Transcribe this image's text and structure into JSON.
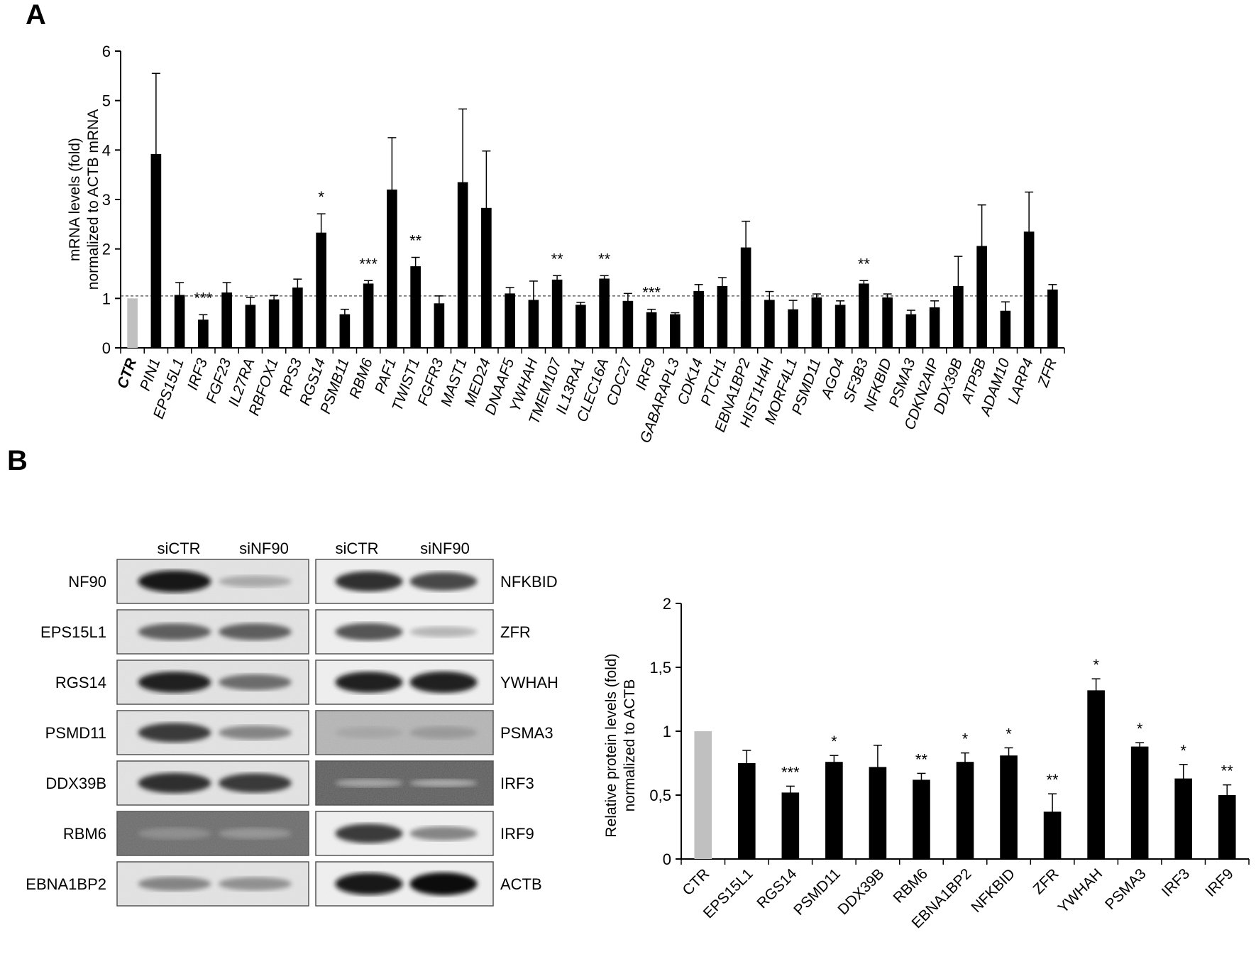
{
  "panels": {
    "a": "A",
    "b": "B"
  },
  "chart_data": [
    {
      "type": "bar",
      "panel": "A",
      "ylabel_lines": [
        "mRNA levels (fold)",
        "normalized to ACTB mRNA"
      ],
      "ylim": [
        0,
        6
      ],
      "yticks": [
        "0",
        "1",
        "2",
        "3",
        "4",
        "5",
        "6"
      ],
      "reference_line": 1.05,
      "categories": [
        "CTR",
        "PIN1",
        "EPS15L1",
        "IRF3",
        "FGF23",
        "IL27RA",
        "RBFOX1",
        "RPS3",
        "RGS14",
        "PSMB11",
        "RBM6",
        "PAF1",
        "TWIST1",
        "FGFR3",
        "MAST1",
        "MED24",
        "DNAAF5",
        "YWHAH",
        "TMEM107",
        "IL13RA1",
        "CLEC16A",
        "CDC27",
        "IRF9",
        "GABARAPL3",
        "CDK14",
        "PTCH1",
        "EBNA1BP2",
        "HIST1H4H",
        "MORF4L1",
        "PSMD11",
        "AGO4",
        "SF3B3",
        "NFKBID",
        "PSMA3",
        "CDKN2AIP",
        "DDX39B",
        "ATP5B",
        "ADAM10",
        "LARP4",
        "ZFR"
      ],
      "values": [
        1.0,
        3.92,
        1.07,
        0.57,
        1.12,
        0.87,
        0.98,
        1.22,
        2.33,
        0.68,
        1.3,
        3.2,
        1.65,
        0.9,
        3.35,
        2.83,
        1.1,
        0.97,
        1.38,
        0.87,
        1.4,
        0.95,
        0.72,
        0.68,
        1.15,
        1.25,
        2.03,
        0.97,
        0.78,
        1.02,
        0.87,
        1.3,
        1.02,
        0.68,
        0.82,
        1.25,
        2.06,
        0.75,
        2.35,
        1.18
      ],
      "errors": [
        0,
        1.63,
        0.25,
        0.1,
        0.2,
        0.15,
        0.08,
        0.17,
        0.38,
        0.1,
        0.06,
        1.05,
        0.18,
        0.15,
        1.48,
        1.15,
        0.12,
        0.38,
        0.08,
        0.05,
        0.06,
        0.15,
        0.06,
        0.03,
        0.13,
        0.17,
        0.53,
        0.17,
        0.18,
        0.07,
        0.08,
        0.06,
        0.07,
        0.08,
        0.13,
        0.6,
        0.83,
        0.18,
        0.8,
        0.1
      ],
      "significance": [
        "",
        "",
        "",
        "***",
        "",
        "",
        "",
        "",
        "*",
        "",
        "***",
        "",
        "**",
        "",
        "",
        "",
        "",
        "",
        "**",
        "",
        "**",
        "",
        "***",
        "",
        "",
        "",
        "",
        "",
        "",
        "",
        "",
        "**",
        "",
        "",
        "",
        "",
        "",
        "",
        "",
        ""
      ],
      "colors": {
        "control": "#c0c0c0",
        "bars": "#000000"
      }
    },
    {
      "type": "bar",
      "panel": "B",
      "ylabel_lines": [
        "Relative protein levels (fold)",
        "normalized to ACTB"
      ],
      "ylim": [
        0,
        2
      ],
      "yticks": [
        "0",
        "0,5",
        "1",
        "1,5",
        "2"
      ],
      "categories": [
        "CTR",
        "EPS15L1",
        "RGS14",
        "PSMD11",
        "DDX39B",
        "RBM6",
        "EBNA1BP2",
        "NFKBID",
        "ZFR",
        "YWHAH",
        "PSMA3",
        "IRF3",
        "IRF9"
      ],
      "values": [
        1.0,
        0.75,
        0.52,
        0.76,
        0.72,
        0.62,
        0.76,
        0.81,
        0.37,
        1.32,
        0.88,
        0.63,
        0.5
      ],
      "errors": [
        0,
        0.1,
        0.05,
        0.05,
        0.17,
        0.05,
        0.07,
        0.06,
        0.14,
        0.09,
        0.03,
        0.11,
        0.08
      ],
      "significance": [
        "",
        "",
        "***",
        "*",
        "",
        "**",
        "*",
        "*",
        "**",
        "*",
        "*",
        "*",
        "**"
      ],
      "colors": {
        "control": "#c0c0c0",
        "bars": "#000000"
      }
    }
  ],
  "blot": {
    "headers_left": [
      "siCTR",
      "siNF90"
    ],
    "headers_right": [
      "siCTR",
      "siNF90"
    ],
    "left_labels": [
      "NF90",
      "EPS15L1",
      "RGS14",
      "PSMD11",
      "DDX39B",
      "RBM6",
      "EBNA1BP2"
    ],
    "right_labels": [
      "NFKBID",
      "ZFR",
      "YWHAH",
      "PSMA3",
      "IRF3",
      "IRF9",
      "ACTB"
    ],
    "left_bands": [
      [
        0.95,
        0.35
      ],
      [
        0.65,
        0.65
      ],
      [
        0.9,
        0.6
      ],
      [
        0.8,
        0.5
      ],
      [
        0.85,
        0.8
      ],
      [
        0.35,
        0.3
      ],
      [
        0.5,
        0.45
      ]
    ],
    "right_bands": [
      [
        0.85,
        0.75
      ],
      [
        0.7,
        0.3
      ],
      [
        0.9,
        0.92
      ],
      [
        0.35,
        0.4
      ],
      [
        0.15,
        0.1
      ],
      [
        0.8,
        0.5
      ],
      [
        0.95,
        1.0
      ]
    ],
    "right_noisy": [
      false,
      false,
      false,
      true,
      true,
      false,
      false
    ]
  }
}
